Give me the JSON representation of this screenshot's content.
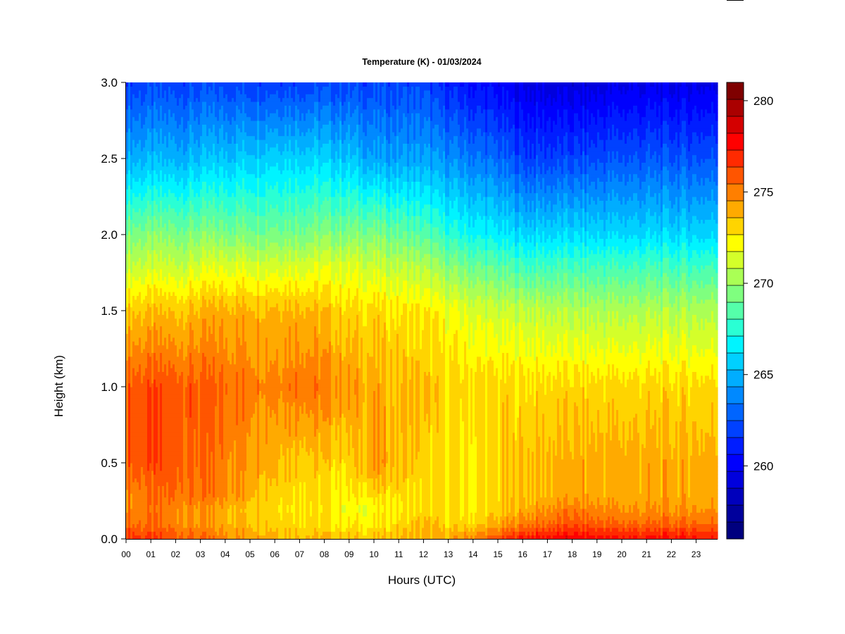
{
  "chart_data": {
    "type": "heatmap",
    "title": "Temperature (K) - 01/03/2024",
    "xlabel": "Hours (UTC)",
    "ylabel": "Height (km)",
    "xlim": [
      0,
      23.9
    ],
    "ylim": [
      0.0,
      3.0
    ],
    "x_ticks": [
      "00",
      "01",
      "02",
      "03",
      "04",
      "05",
      "06",
      "07",
      "08",
      "09",
      "10",
      "11",
      "12",
      "13",
      "14",
      "15",
      "16",
      "17",
      "18",
      "19",
      "20",
      "21",
      "22",
      "23"
    ],
    "y_ticks": [
      "0.0",
      "0.5",
      "1.0",
      "1.5",
      "2.0",
      "2.5",
      "3.0"
    ],
    "colorbar": {
      "min": 256,
      "max": 281,
      "ticks": [
        "260",
        "265",
        "270",
        "275",
        "280"
      ],
      "levels": 25,
      "colors": [
        "#00007f",
        "#00009c",
        "#0000bc",
        "#0000dd",
        "#0000fd",
        "#001dff",
        "#0041ff",
        "#0065ff",
        "#0089ff",
        "#00adff",
        "#00d0ff",
        "#00f4ff",
        "#2affd4",
        "#55ffaa",
        "#7fff7f",
        "#aaff55",
        "#d4ff2a",
        "#ffff00",
        "#ffd400",
        "#ffaa00",
        "#ff7f00",
        "#ff5500",
        "#ff2a00",
        "#ff0000",
        "#d40000",
        "#aa0000",
        "#7f0000"
      ]
    },
    "heights_km": [
      0.0,
      0.1,
      0.2,
      0.3,
      0.5,
      1.0,
      1.5,
      1.8,
      2.0,
      2.5,
      3.0
    ],
    "profiles": [
      {
        "hour": 0,
        "temperature_K": [
          277,
          275.5,
          275,
          275,
          276,
          276,
          273.5,
          271,
          269.5,
          265,
          262
        ]
      },
      {
        "hour": 2,
        "temperature_K": [
          276,
          275,
          275,
          275.5,
          276,
          276,
          273.5,
          271,
          269.5,
          265,
          262
        ]
      },
      {
        "hour": 4,
        "temperature_K": [
          275,
          274,
          274,
          275,
          275,
          275.5,
          274,
          271.5,
          269.5,
          265.5,
          262
        ]
      },
      {
        "hour": 6,
        "temperature_K": [
          274,
          273.5,
          273,
          273.5,
          274,
          275,
          274,
          271.5,
          269.5,
          266,
          262
        ]
      },
      {
        "hour": 7,
        "temperature_K": [
          274,
          273,
          273,
          273,
          273.5,
          275.5,
          274,
          271.5,
          269.5,
          266,
          262
        ]
      },
      {
        "hour": 9,
        "temperature_K": [
          273.5,
          272.5,
          272,
          272.5,
          273,
          274.5,
          273,
          271.5,
          269.5,
          265.5,
          262
        ]
      },
      {
        "hour": 10,
        "temperature_K": [
          273.5,
          272.5,
          272,
          273,
          274.5,
          274,
          273,
          271,
          269.5,
          264.5,
          262
        ]
      },
      {
        "hour": 12,
        "temperature_K": [
          274,
          273.5,
          273,
          273,
          273,
          273.5,
          272.5,
          270.5,
          268.5,
          264.5,
          262
        ]
      },
      {
        "hour": 13,
        "temperature_K": [
          274,
          273,
          273,
          273,
          273,
          273,
          272,
          269.5,
          267.5,
          264,
          261
        ]
      },
      {
        "hour": 14,
        "temperature_K": [
          275,
          273,
          272.5,
          272.5,
          272.5,
          273,
          271.5,
          269,
          267,
          263.5,
          260.5
        ]
      },
      {
        "hour": 15,
        "temperature_K": [
          276,
          274,
          273,
          273,
          273,
          273,
          271,
          268.5,
          266.5,
          263,
          260
        ]
      },
      {
        "hour": 16,
        "temperature_K": [
          277.5,
          275,
          274,
          273.5,
          273.5,
          273,
          271,
          268,
          266,
          262,
          259.5
        ]
      },
      {
        "hour": 18,
        "temperature_K": [
          278,
          276,
          275,
          274,
          274,
          273,
          270.5,
          268,
          266,
          262,
          259
        ]
      },
      {
        "hour": 20,
        "temperature_K": [
          277.5,
          275.5,
          274.5,
          274,
          274,
          273,
          270.5,
          268,
          266,
          262.5,
          259.5
        ]
      },
      {
        "hour": 22,
        "temperature_K": [
          277.5,
          275.5,
          274.5,
          274,
          274,
          273,
          270.5,
          268,
          266,
          262.5,
          259.5
        ]
      },
      {
        "hour": 23.9,
        "temperature_K": [
          277.5,
          275.5,
          274.5,
          274,
          274,
          273,
          270.5,
          268,
          266,
          262.5,
          259.5
        ]
      }
    ]
  }
}
